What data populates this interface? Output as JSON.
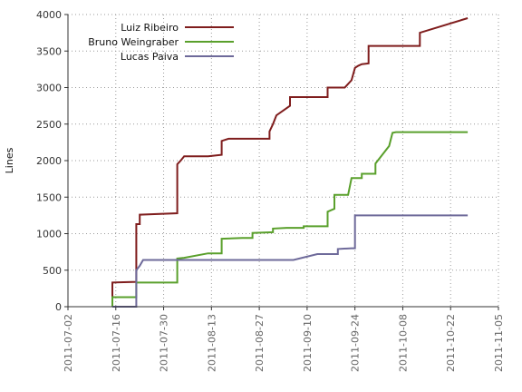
{
  "chart_data": {
    "type": "line",
    "xlabel": "",
    "ylabel": "Lines",
    "x_axis_type": "date",
    "xlim": [
      "2011-07-02",
      "2011-11-05"
    ],
    "ylim": [
      0,
      4000
    ],
    "grid": true,
    "legend_position": "top-left",
    "y_ticks": [
      0,
      500,
      1000,
      1500,
      2000,
      2500,
      3000,
      3500,
      4000
    ],
    "y_tick_labels": [
      "0",
      "500",
      "1000",
      "1500",
      "2000",
      "2500",
      "3000",
      "3500",
      "4000"
    ],
    "x_ticks": [
      "2011-07-02",
      "2011-07-16",
      "2011-07-30",
      "2011-08-13",
      "2011-08-27",
      "2011-09-10",
      "2011-09-24",
      "2011-10-08",
      "2011-10-22",
      "2011-11-05"
    ],
    "x_tick_labels": [
      "2011-07-02",
      "2011-07-16",
      "2011-07-30",
      "2011-08-13",
      "2011-08-27",
      "2011-09-10",
      "2011-09-24",
      "2011-10-08",
      "2011-10-22",
      "2011-11-05"
    ],
    "series": [
      {
        "name": "Luiz Ribeiro",
        "color": "#7f1d1d",
        "points": [
          [
            "2011-07-15",
            0
          ],
          [
            "2011-07-15",
            330
          ],
          [
            "2011-07-22",
            340
          ],
          [
            "2011-07-22",
            600
          ],
          [
            "2011-07-22",
            880
          ],
          [
            "2011-07-22",
            1130
          ],
          [
            "2011-07-23",
            1130
          ],
          [
            "2011-07-23",
            1260
          ],
          [
            "2011-08-03",
            1280
          ],
          [
            "2011-08-03",
            1380
          ],
          [
            "2011-08-03",
            1750
          ],
          [
            "2011-08-03",
            1950
          ],
          [
            "2011-08-04",
            2000
          ],
          [
            "2011-08-05",
            2060
          ],
          [
            "2011-08-12",
            2060
          ],
          [
            "2011-08-16",
            2080
          ],
          [
            "2011-08-16",
            2270
          ],
          [
            "2011-08-18",
            2300
          ],
          [
            "2011-08-30",
            2300
          ],
          [
            "2011-08-30",
            2400
          ],
          [
            "2011-08-31",
            2500
          ],
          [
            "2011-09-01",
            2620
          ],
          [
            "2011-09-05",
            2750
          ],
          [
            "2011-09-05",
            2870
          ],
          [
            "2011-09-16",
            2870
          ],
          [
            "2011-09-16",
            3000
          ],
          [
            "2011-09-21",
            3000
          ],
          [
            "2011-09-23",
            3100
          ],
          [
            "2011-09-24",
            3270
          ],
          [
            "2011-09-25",
            3300
          ],
          [
            "2011-09-26",
            3320
          ],
          [
            "2011-09-28",
            3330
          ],
          [
            "2011-09-28",
            3570
          ],
          [
            "2011-10-13",
            3570
          ],
          [
            "2011-10-13",
            3750
          ],
          [
            "2011-10-27",
            3950
          ]
        ]
      },
      {
        "name": "Bruno Weingraber",
        "color": "#5aa02c",
        "points": [
          [
            "2011-07-15",
            0
          ],
          [
            "2011-07-15",
            130
          ],
          [
            "2011-07-22",
            130
          ],
          [
            "2011-07-22",
            330
          ],
          [
            "2011-08-03",
            330
          ],
          [
            "2011-08-03",
            660
          ],
          [
            "2011-08-05",
            670
          ],
          [
            "2011-08-12",
            730
          ],
          [
            "2011-08-16",
            730
          ],
          [
            "2011-08-16",
            930
          ],
          [
            "2011-08-22",
            940
          ],
          [
            "2011-08-25",
            940
          ],
          [
            "2011-08-25",
            1010
          ],
          [
            "2011-08-31",
            1020
          ],
          [
            "2011-08-31",
            1070
          ],
          [
            "2011-09-04",
            1080
          ],
          [
            "2011-09-09",
            1080
          ],
          [
            "2011-09-09",
            1100
          ],
          [
            "2011-09-16",
            1100
          ],
          [
            "2011-09-16",
            1300
          ],
          [
            "2011-09-18",
            1340
          ],
          [
            "2011-09-18",
            1530
          ],
          [
            "2011-09-22",
            1530
          ],
          [
            "2011-09-23",
            1760
          ],
          [
            "2011-09-26",
            1760
          ],
          [
            "2011-09-26",
            1820
          ],
          [
            "2011-09-30",
            1820
          ],
          [
            "2011-09-30",
            1960
          ],
          [
            "2011-10-04",
            2200
          ],
          [
            "2011-10-05",
            2380
          ],
          [
            "2011-10-06",
            2390
          ],
          [
            "2011-10-27",
            2390
          ]
        ]
      },
      {
        "name": "Lucas Paiva",
        "color": "#6e6a9a",
        "points": [
          [
            "2011-07-15",
            0
          ],
          [
            "2011-07-22",
            0
          ],
          [
            "2011-07-22",
            500
          ],
          [
            "2011-07-23",
            560
          ],
          [
            "2011-07-24",
            640
          ],
          [
            "2011-09-06",
            640
          ],
          [
            "2011-09-13",
            720
          ],
          [
            "2011-09-15",
            720
          ],
          [
            "2011-09-19",
            720
          ],
          [
            "2011-09-19",
            790
          ],
          [
            "2011-09-23",
            800
          ],
          [
            "2011-09-24",
            800
          ],
          [
            "2011-09-24",
            1130
          ],
          [
            "2011-09-24",
            1250
          ],
          [
            "2011-10-27",
            1250
          ]
        ]
      }
    ]
  }
}
